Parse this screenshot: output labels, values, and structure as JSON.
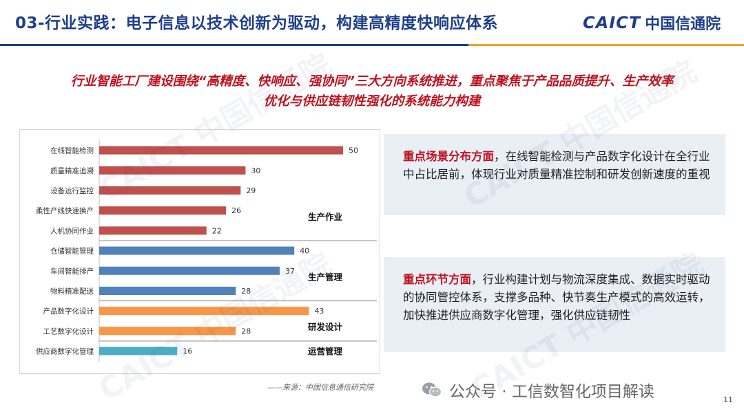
{
  "header": {
    "title": "03-行业实践：电子信息以技术创新为驱动，构建高精度快响应体系",
    "logo_en": "CAICT",
    "logo_cn": "中国信通院"
  },
  "subtitle": {
    "line1": "行业智能工厂建设围绕“高精度、快响应、强协同”三大方向系统推进，重点聚焦于产品品质提升、生产效率",
    "line2": "优化与供应链韧性强化的系统能力构建"
  },
  "chart_data": {
    "type": "bar",
    "orientation": "horizontal",
    "categories": [
      "在线智能检测",
      "质量精准追溯",
      "设备运行监控",
      "柔性产线快速换产",
      "人机协同作业",
      "仓储智能管理",
      "车间智能排产",
      "物料精准配送",
      "产品数字化设计",
      "工艺数字化设计",
      "供应商数字化管理"
    ],
    "values": [
      50,
      30,
      29,
      26,
      22,
      40,
      37,
      28,
      43,
      28,
      16
    ],
    "groups": [
      {
        "name": "生产作业",
        "start": 0,
        "end": 4,
        "color": "#c0504d"
      },
      {
        "name": "生产管理",
        "start": 5,
        "end": 7,
        "color": "#4f81bd"
      },
      {
        "name": "研发设计",
        "start": 8,
        "end": 9,
        "color": "#f79646"
      },
      {
        "name": "运营管理",
        "start": 10,
        "end": 10,
        "color": "#4bacc6"
      }
    ],
    "xlim": [
      0,
      60
    ],
    "title": "",
    "xlabel": "",
    "ylabel": "",
    "grid": false
  },
  "source": "——来源：中国信息通信研究院",
  "panel1": {
    "highlight": "重点场景分布方面",
    "text": "，在线智能检测与产品数字化设计在全行业中占比居前，体现行业对质量精准控制和研发创新速度的重视"
  },
  "panel2": {
    "highlight": "重点环节方面",
    "text": "，行业构建计划与物流深度集成、数据实时驱动的协同管控体系，支撑多品种、快节奏生产模式的高效运转，加快推进供应商数字化管理，强化供应链韧性"
  },
  "footer": {
    "wechat": "公众号 · 工信数智化项目解读",
    "page": "11"
  }
}
